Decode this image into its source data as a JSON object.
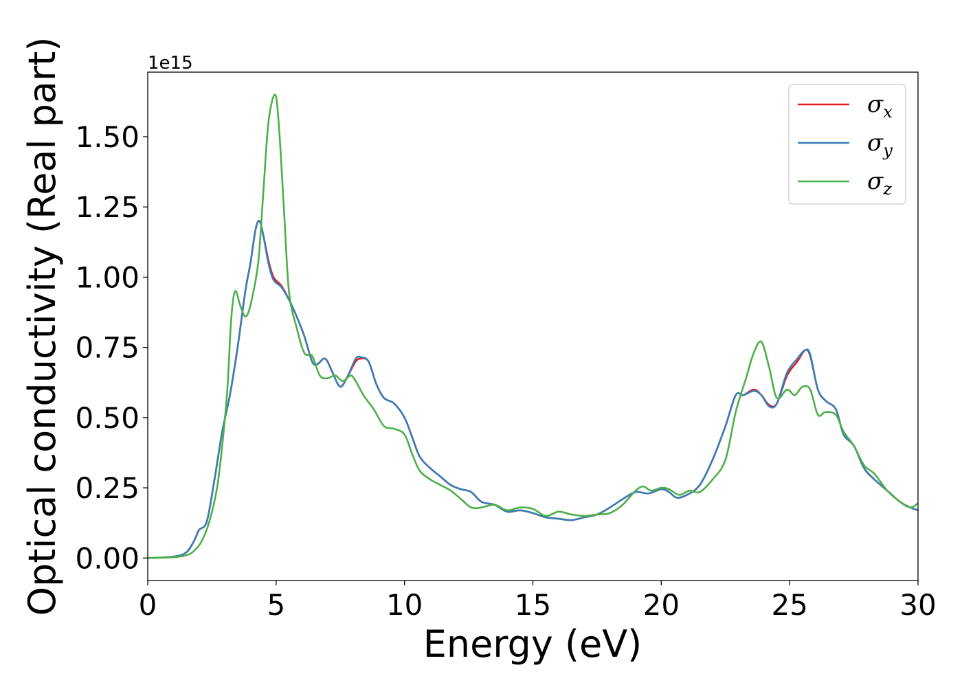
{
  "chart_data": {
    "type": "line",
    "title": "",
    "xlabel": "Energy (eV)",
    "ylabel": "Optical conductivity (Real part)",
    "y_offset_label": "1e15",
    "xlim": [
      0,
      30
    ],
    "ylim": [
      -0.08,
      1.73
    ],
    "x_ticks": [
      0,
      5,
      10,
      15,
      20,
      25,
      30
    ],
    "x_tick_labels": [
      "0",
      "5",
      "10",
      "15",
      "20",
      "25",
      "30"
    ],
    "y_ticks": [
      0.0,
      0.25,
      0.5,
      0.75,
      1.0,
      1.25,
      1.5
    ],
    "y_tick_labels": [
      "0.00",
      "0.25",
      "0.50",
      "0.75",
      "1.00",
      "1.25",
      "1.50"
    ],
    "grid": false,
    "legend_position": "top-right",
    "series": [
      {
        "name": "σ",
        "subscript": "x",
        "color": "#e41a1c",
        "points": [
          [
            0,
            0
          ],
          [
            1,
            0.005
          ],
          [
            1.5,
            0.02
          ],
          [
            1.8,
            0.06
          ],
          [
            2,
            0.1
          ],
          [
            2.3,
            0.13
          ],
          [
            2.6,
            0.28
          ],
          [
            2.9,
            0.45
          ],
          [
            3.2,
            0.58
          ],
          [
            3.5,
            0.75
          ],
          [
            3.8,
            0.95
          ],
          [
            4.0,
            1.05
          ],
          [
            4.2,
            1.17
          ],
          [
            4.35,
            1.2
          ],
          [
            4.5,
            1.15
          ],
          [
            4.7,
            1.06
          ],
          [
            4.9,
            1.0
          ],
          [
            5.2,
            0.97
          ],
          [
            5.5,
            0.92
          ],
          [
            5.8,
            0.86
          ],
          [
            6.1,
            0.79
          ],
          [
            6.4,
            0.7
          ],
          [
            6.6,
            0.69
          ],
          [
            6.85,
            0.71
          ],
          [
            7.0,
            0.7
          ],
          [
            7.2,
            0.66
          ],
          [
            7.5,
            0.61
          ],
          [
            7.8,
            0.65
          ],
          [
            8.1,
            0.7
          ],
          [
            8.3,
            0.71
          ],
          [
            8.6,
            0.7
          ],
          [
            8.9,
            0.62
          ],
          [
            9.2,
            0.57
          ],
          [
            9.6,
            0.55
          ],
          [
            10.0,
            0.5
          ],
          [
            10.3,
            0.43
          ],
          [
            10.6,
            0.36
          ],
          [
            11.0,
            0.32
          ],
          [
            11.4,
            0.29
          ],
          [
            11.8,
            0.26
          ],
          [
            12.2,
            0.245
          ],
          [
            12.6,
            0.235
          ],
          [
            13.0,
            0.2
          ],
          [
            13.5,
            0.19
          ],
          [
            14.0,
            0.165
          ],
          [
            14.5,
            0.17
          ],
          [
            15.0,
            0.16
          ],
          [
            15.5,
            0.145
          ],
          [
            16.0,
            0.14
          ],
          [
            16.5,
            0.135
          ],
          [
            17.0,
            0.145
          ],
          [
            17.5,
            0.155
          ],
          [
            18.0,
            0.18
          ],
          [
            18.5,
            0.21
          ],
          [
            19.0,
            0.235
          ],
          [
            19.5,
            0.23
          ],
          [
            20.0,
            0.245
          ],
          [
            20.3,
            0.235
          ],
          [
            20.6,
            0.215
          ],
          [
            21.0,
            0.225
          ],
          [
            21.5,
            0.26
          ],
          [
            22.0,
            0.35
          ],
          [
            22.5,
            0.47
          ],
          [
            22.9,
            0.58
          ],
          [
            23.2,
            0.58
          ],
          [
            23.6,
            0.6
          ],
          [
            23.9,
            0.58
          ],
          [
            24.2,
            0.545
          ],
          [
            24.5,
            0.55
          ],
          [
            24.9,
            0.65
          ],
          [
            25.3,
            0.7
          ],
          [
            25.6,
            0.74
          ],
          [
            25.8,
            0.72
          ],
          [
            26.1,
            0.6
          ],
          [
            26.4,
            0.56
          ],
          [
            26.8,
            0.53
          ],
          [
            27.1,
            0.44
          ],
          [
            27.5,
            0.4
          ],
          [
            27.9,
            0.32
          ],
          [
            28.3,
            0.28
          ],
          [
            28.8,
            0.24
          ],
          [
            29.3,
            0.2
          ],
          [
            29.7,
            0.18
          ],
          [
            30,
            0.17
          ]
        ]
      },
      {
        "name": "σ",
        "subscript": "y",
        "color": "#377eb8",
        "points": [
          [
            0,
            0
          ],
          [
            1,
            0.005
          ],
          [
            1.5,
            0.02
          ],
          [
            1.8,
            0.06
          ],
          [
            2,
            0.1
          ],
          [
            2.3,
            0.13
          ],
          [
            2.6,
            0.28
          ],
          [
            2.9,
            0.45
          ],
          [
            3.2,
            0.58
          ],
          [
            3.5,
            0.75
          ],
          [
            3.8,
            0.95
          ],
          [
            4.0,
            1.05
          ],
          [
            4.2,
            1.17
          ],
          [
            4.35,
            1.2
          ],
          [
            4.5,
            1.15
          ],
          [
            4.7,
            1.05
          ],
          [
            4.9,
            0.99
          ],
          [
            5.2,
            0.965
          ],
          [
            5.5,
            0.92
          ],
          [
            5.8,
            0.86
          ],
          [
            6.1,
            0.79
          ],
          [
            6.4,
            0.7
          ],
          [
            6.6,
            0.69
          ],
          [
            6.85,
            0.71
          ],
          [
            7.0,
            0.7
          ],
          [
            7.2,
            0.66
          ],
          [
            7.5,
            0.61
          ],
          [
            7.8,
            0.65
          ],
          [
            8.1,
            0.71
          ],
          [
            8.3,
            0.715
          ],
          [
            8.6,
            0.7
          ],
          [
            8.9,
            0.62
          ],
          [
            9.2,
            0.57
          ],
          [
            9.6,
            0.55
          ],
          [
            10.0,
            0.5
          ],
          [
            10.3,
            0.43
          ],
          [
            10.6,
            0.36
          ],
          [
            11.0,
            0.32
          ],
          [
            11.4,
            0.29
          ],
          [
            11.8,
            0.26
          ],
          [
            12.2,
            0.245
          ],
          [
            12.6,
            0.235
          ],
          [
            13.0,
            0.2
          ],
          [
            13.5,
            0.19
          ],
          [
            14.0,
            0.165
          ],
          [
            14.5,
            0.17
          ],
          [
            15.0,
            0.16
          ],
          [
            15.5,
            0.145
          ],
          [
            16.0,
            0.14
          ],
          [
            16.5,
            0.135
          ],
          [
            17.0,
            0.145
          ],
          [
            17.5,
            0.155
          ],
          [
            18.0,
            0.18
          ],
          [
            18.5,
            0.21
          ],
          [
            19.0,
            0.235
          ],
          [
            19.5,
            0.23
          ],
          [
            20.0,
            0.245
          ],
          [
            20.3,
            0.235
          ],
          [
            20.6,
            0.215
          ],
          [
            21.0,
            0.225
          ],
          [
            21.5,
            0.26
          ],
          [
            22.0,
            0.35
          ],
          [
            22.5,
            0.47
          ],
          [
            22.9,
            0.58
          ],
          [
            23.2,
            0.58
          ],
          [
            23.6,
            0.595
          ],
          [
            23.9,
            0.58
          ],
          [
            24.2,
            0.54
          ],
          [
            24.5,
            0.55
          ],
          [
            24.9,
            0.66
          ],
          [
            25.3,
            0.71
          ],
          [
            25.6,
            0.74
          ],
          [
            25.8,
            0.725
          ],
          [
            26.1,
            0.6
          ],
          [
            26.4,
            0.56
          ],
          [
            26.8,
            0.53
          ],
          [
            27.1,
            0.44
          ],
          [
            27.5,
            0.4
          ],
          [
            27.9,
            0.32
          ],
          [
            28.3,
            0.28
          ],
          [
            28.8,
            0.24
          ],
          [
            29.3,
            0.2
          ],
          [
            29.7,
            0.18
          ],
          [
            30,
            0.17
          ]
        ]
      },
      {
        "name": "σ",
        "subscript": "z",
        "color": "#4daf4a",
        "points": [
          [
            0,
            0
          ],
          [
            1,
            0.003
          ],
          [
            1.5,
            0.01
          ],
          [
            1.8,
            0.025
          ],
          [
            2.1,
            0.06
          ],
          [
            2.4,
            0.13
          ],
          [
            2.7,
            0.25
          ],
          [
            2.9,
            0.4
          ],
          [
            3.1,
            0.6
          ],
          [
            3.25,
            0.85
          ],
          [
            3.4,
            0.95
          ],
          [
            3.6,
            0.9
          ],
          [
            3.8,
            0.86
          ],
          [
            4.0,
            0.9
          ],
          [
            4.3,
            1.05
          ],
          [
            4.5,
            1.3
          ],
          [
            4.7,
            1.55
          ],
          [
            4.95,
            1.65
          ],
          [
            5.1,
            1.55
          ],
          [
            5.3,
            1.25
          ],
          [
            5.5,
            0.95
          ],
          [
            5.8,
            0.82
          ],
          [
            6.1,
            0.73
          ],
          [
            6.4,
            0.72
          ],
          [
            6.7,
            0.65
          ],
          [
            7.0,
            0.64
          ],
          [
            7.3,
            0.65
          ],
          [
            7.6,
            0.63
          ],
          [
            7.9,
            0.65
          ],
          [
            8.1,
            0.63
          ],
          [
            8.4,
            0.58
          ],
          [
            8.8,
            0.53
          ],
          [
            9.2,
            0.47
          ],
          [
            9.6,
            0.46
          ],
          [
            10.0,
            0.44
          ],
          [
            10.3,
            0.37
          ],
          [
            10.6,
            0.31
          ],
          [
            11.0,
            0.28
          ],
          [
            11.4,
            0.26
          ],
          [
            11.8,
            0.24
          ],
          [
            12.2,
            0.21
          ],
          [
            12.6,
            0.18
          ],
          [
            13.0,
            0.18
          ],
          [
            13.5,
            0.19
          ],
          [
            14.0,
            0.17
          ],
          [
            14.5,
            0.18
          ],
          [
            15.0,
            0.175
          ],
          [
            15.5,
            0.15
          ],
          [
            16.0,
            0.165
          ],
          [
            16.5,
            0.155
          ],
          [
            17.0,
            0.15
          ],
          [
            17.5,
            0.155
          ],
          [
            18.0,
            0.16
          ],
          [
            18.5,
            0.19
          ],
          [
            19.0,
            0.24
          ],
          [
            19.3,
            0.255
          ],
          [
            19.6,
            0.24
          ],
          [
            20.0,
            0.25
          ],
          [
            20.3,
            0.245
          ],
          [
            20.7,
            0.225
          ],
          [
            21.1,
            0.24
          ],
          [
            21.5,
            0.235
          ],
          [
            22.0,
            0.28
          ],
          [
            22.5,
            0.35
          ],
          [
            22.9,
            0.52
          ],
          [
            23.3,
            0.64
          ],
          [
            23.6,
            0.73
          ],
          [
            23.9,
            0.77
          ],
          [
            24.2,
            0.68
          ],
          [
            24.5,
            0.57
          ],
          [
            24.9,
            0.6
          ],
          [
            25.2,
            0.58
          ],
          [
            25.5,
            0.61
          ],
          [
            25.8,
            0.6
          ],
          [
            26.1,
            0.51
          ],
          [
            26.4,
            0.52
          ],
          [
            26.8,
            0.51
          ],
          [
            27.1,
            0.45
          ],
          [
            27.5,
            0.4
          ],
          [
            27.9,
            0.33
          ],
          [
            28.3,
            0.3
          ],
          [
            28.8,
            0.24
          ],
          [
            29.3,
            0.2
          ],
          [
            29.7,
            0.18
          ],
          [
            30,
            0.195
          ]
        ]
      }
    ]
  }
}
